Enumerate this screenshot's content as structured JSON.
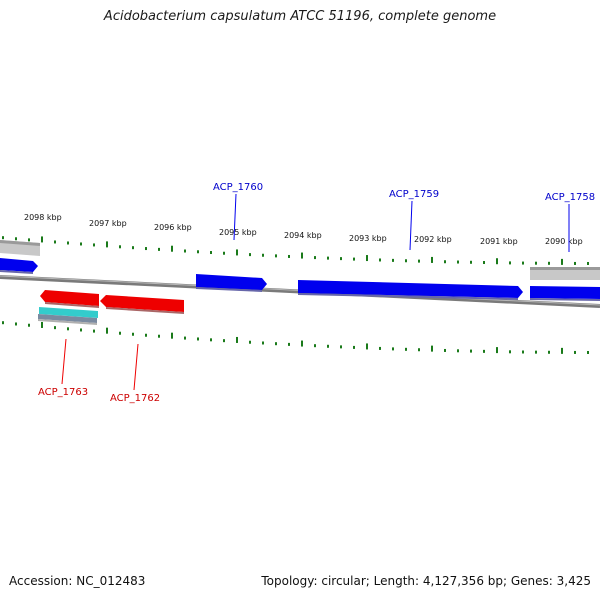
{
  "title": "Acidobacterium capsulatum ATCC 51196, complete genome",
  "footer": {
    "accession": "Accession: NC_012483",
    "summary": "Topology: circular; Length: 4,127,356 bp; Genes: 3,425"
  },
  "colors": {
    "forward_gene": "#0000ee",
    "reverse_gene": "#ee0000",
    "backbone": "#8a8a8a",
    "ticks": "#1a7a1a",
    "other_feature": "#c0c0c0",
    "cyan_feature": "#33cccc"
  },
  "scale_labels": [
    "2098 kbp",
    "2097 kbp",
    "2096 kbp",
    "2095 kbp",
    "2094 kbp",
    "2093 kbp",
    "2092 kbp",
    "2091 kbp",
    "2090 kbp"
  ],
  "genes": [
    {
      "id": "ACP_1760",
      "strand": "forward"
    },
    {
      "id": "ACP_1759",
      "strand": "forward"
    },
    {
      "id": "ACP_1758",
      "strand": "forward"
    },
    {
      "id": "ACP_1763",
      "strand": "reverse"
    },
    {
      "id": "ACP_1762",
      "strand": "reverse"
    }
  ]
}
